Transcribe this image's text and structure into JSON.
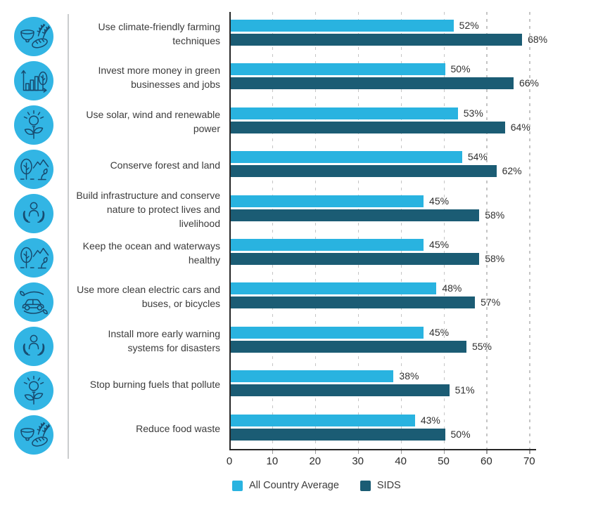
{
  "colors": {
    "series1": "#29B3E0",
    "series2": "#1B5C74",
    "icon_circle": "#32B5E4",
    "icon_stroke": "#174A6E",
    "gridline": "#C5C5C5",
    "axis": "#272727",
    "divider": "#CBCDCE",
    "text": "#3B3B3B"
  },
  "icon_column": {
    "icons": [
      "food",
      "growth-chart",
      "green-energy",
      "nature",
      "protect-people",
      "nature",
      "clean-transport",
      "protect-people",
      "green-energy",
      "food"
    ]
  },
  "chart_data": {
    "type": "bar",
    "orientation": "horizontal",
    "title": "",
    "xlabel": "",
    "ylabel": "",
    "categories": [
      "Use climate-friendly farming techniques",
      "Invest more money in green businesses and jobs",
      "Use solar, wind and renewable power",
      "Conserve forest and land",
      "Build infrastructure and conserve nature to protect lives and livelihood",
      "Keep the ocean and waterways healthy",
      "Use more clean electric cars and buses, or bicycles",
      "Install more early warning systems for disasters",
      "Stop burning fuels that pollute",
      "Reduce food waste"
    ],
    "series": [
      {
        "name": "All Country Average",
        "color": "#29B3E0",
        "values": [
          52,
          50,
          53,
          54,
          45,
          45,
          48,
          45,
          38,
          43
        ]
      },
      {
        "name": "SIDS",
        "color": "#1B5C74",
        "values": [
          68,
          66,
          64,
          62,
          58,
          58,
          57,
          55,
          51,
          50
        ]
      }
    ],
    "value_suffix": "%",
    "xlim": [
      0,
      71.5
    ],
    "grid": "dashed-vertical",
    "legend_position": "bottom"
  },
  "x_axis": {
    "ticks": [
      "0",
      "10",
      "20",
      "30",
      "40",
      "50",
      "60",
      "70"
    ]
  },
  "legend": {
    "items": [
      {
        "label": "All Country Average",
        "color": "#29B3E0"
      },
      {
        "label": "SIDS",
        "color": "#1B5C74"
      }
    ]
  }
}
